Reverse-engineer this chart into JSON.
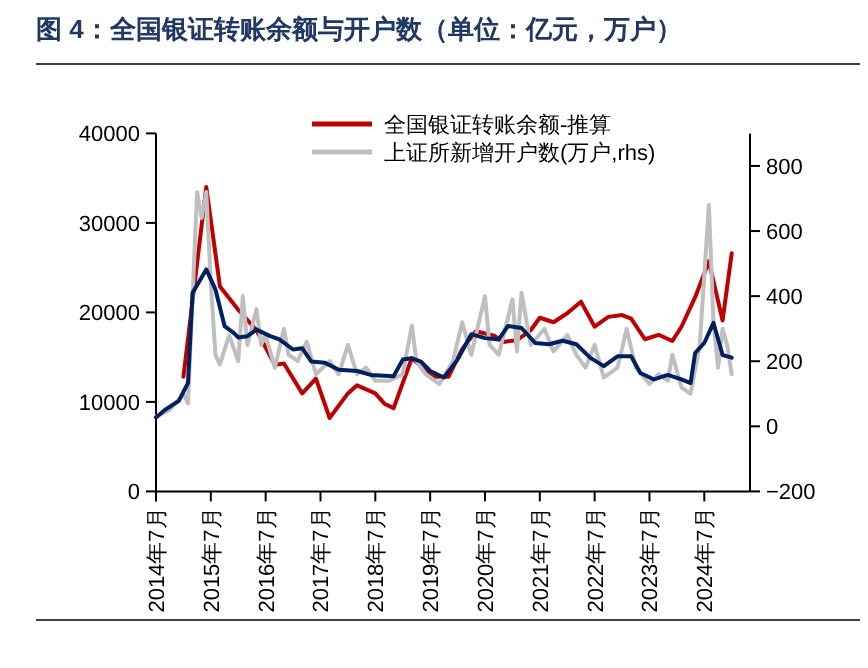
{
  "chart_data": {
    "type": "line",
    "title": "图 4：全国银证转账余额与开户数（单位：亿元，万户）",
    "xlim": [
      "2014-07",
      "2025-05"
    ],
    "xticks": [
      {
        "value": "2014-07",
        "label": "2014年7月"
      },
      {
        "value": "2015-07",
        "label": "2015年7月"
      },
      {
        "value": "2016-07",
        "label": "2016年7月"
      },
      {
        "value": "2017-07",
        "label": "2017年7月"
      },
      {
        "value": "2018-07",
        "label": "2018年7月"
      },
      {
        "value": "2019-07",
        "label": "2019年7月"
      },
      {
        "value": "2020-07",
        "label": "2020年7月"
      },
      {
        "value": "2021-07",
        "label": "2021年7月"
      },
      {
        "value": "2022-07",
        "label": "2022年7月"
      },
      {
        "value": "2023-07",
        "label": "2023年7月"
      },
      {
        "value": "2024-07",
        "label": "2024年7月"
      }
    ],
    "ylim": [
      0,
      40000
    ],
    "yticks": [
      0,
      10000,
      20000,
      30000,
      40000
    ],
    "y2lim": [
      -200,
      900
    ],
    "y2ticks": [
      -200,
      0,
      200,
      400,
      600,
      800
    ],
    "legend": "top",
    "grid": false,
    "line_style": "solid",
    "marker": "none",
    "series": [
      {
        "name": "全国银证转账余额-推算",
        "color": "#c00000",
        "x": [
          "2015-01",
          "2015-06",
          "2015-09",
          "2016-01",
          "2016-05",
          "2016-09",
          "2016-11",
          "2017-03",
          "2017-06",
          "2017-09",
          "2018-01",
          "2018-03",
          "2018-07",
          "2018-09",
          "2018-11",
          "2019-03",
          "2019-05",
          "2019-08",
          "2019-11",
          "2020-02",
          "2020-05",
          "2020-09",
          "2020-11",
          "2021-02",
          "2021-05",
          "2021-07",
          "2021-10",
          "2022-01",
          "2022-04",
          "2022-07",
          "2022-10",
          "2023-01",
          "2023-03",
          "2023-06",
          "2023-09",
          "2023-12",
          "2024-02",
          "2024-05",
          "2024-08",
          "2024-11",
          "2025-01"
        ],
        "values": [
          12800,
          34000,
          22900,
          20300,
          18000,
          14150,
          14300,
          10950,
          12600,
          8200,
          10950,
          11850,
          10950,
          9800,
          9300,
          14900,
          13950,
          12800,
          12800,
          15900,
          17900,
          17400,
          16700,
          16900,
          18000,
          19400,
          18900,
          19900,
          21200,
          18400,
          19500,
          19700,
          19300,
          17000,
          17500,
          16800,
          18400,
          21700,
          25700,
          19100,
          26600
        ]
      },
      {
        "name": "上证所新增开户数(万户,rhs)",
        "color": "#bfbfbf",
        "axis": "y2",
        "x": [
          "2014-07",
          "2014-10",
          "2015-01",
          "2015-02",
          "2015-04",
          "2015-05",
          "2015-06",
          "2015-07",
          "2015-08",
          "2015-09",
          "2015-11",
          "2015-12",
          "2016-01",
          "2016-02",
          "2016-03",
          "2016-05",
          "2016-06",
          "2016-07",
          "2016-09",
          "2016-11",
          "2016-12",
          "2017-02",
          "2017-04",
          "2017-06",
          "2017-09",
          "2017-11",
          "2018-01",
          "2018-03",
          "2018-05",
          "2018-07",
          "2018-10",
          "2019-01",
          "2019-03",
          "2019-04",
          "2019-06",
          "2019-09",
          "2019-12",
          "2020-02",
          "2020-04",
          "2020-07",
          "2020-08",
          "2020-10",
          "2021-01",
          "2021-02",
          "2021-03",
          "2021-05",
          "2021-08",
          "2021-10",
          "2022-01",
          "2022-03",
          "2022-05",
          "2022-07",
          "2022-09",
          "2022-12",
          "2023-02",
          "2023-04",
          "2023-07",
          "2023-09",
          "2023-11",
          "2023-12",
          "2024-02",
          "2024-04",
          "2024-06",
          "2024-08",
          "2024-09",
          "2024-10",
          "2024-11",
          "2024-12",
          "2025-01"
        ],
        "values": [
          30,
          50,
          100,
          70,
          720,
          640,
          720,
          440,
          220,
          190,
          280,
          240,
          200,
          400,
          250,
          360,
          250,
          280,
          180,
          300,
          220,
          200,
          260,
          160,
          200,
          160,
          250,
          160,
          180,
          140,
          140,
          160,
          310,
          200,
          160,
          130,
          200,
          320,
          220,
          400,
          250,
          220,
          390,
          230,
          410,
          250,
          300,
          230,
          280,
          220,
          180,
          250,
          150,
          180,
          300,
          180,
          130,
          160,
          140,
          220,
          120,
          100,
          250,
          680,
          320,
          180,
          300,
          250,
          160
        ]
      },
      {
        "color": "#002060",
        "axis": "y2",
        "x": [
          "2014-07",
          "2014-09",
          "2014-12",
          "2015-02",
          "2015-03",
          "2015-06",
          "2015-08",
          "2015-10",
          "2015-12",
          "2016-01",
          "2016-03",
          "2016-05",
          "2016-08",
          "2016-10",
          "2017-01",
          "2017-03",
          "2017-05",
          "2017-08",
          "2017-11",
          "2018-03",
          "2018-06",
          "2018-11",
          "2019-01",
          "2019-03",
          "2019-05",
          "2019-07",
          "2019-10",
          "2020-01",
          "2020-04",
          "2020-07",
          "2020-10",
          "2020-12",
          "2021-03",
          "2021-06",
          "2021-09",
          "2021-12",
          "2022-03",
          "2022-06",
          "2022-09",
          "2022-12",
          "2023-03",
          "2023-05",
          "2023-08",
          "2023-11",
          "2024-02",
          "2024-04",
          "2024-05",
          "2024-07",
          "2024-09",
          "2024-11",
          "2025-01"
        ],
        "values": [
          27,
          51,
          78,
          133,
          410,
          482,
          421,
          308,
          287,
          273,
          277,
          297,
          277,
          267,
          236,
          240,
          199,
          195,
          174,
          170,
          158,
          154,
          205,
          209,
          199,
          170,
          150,
          205,
          283,
          271,
          267,
          308,
          302,
          256,
          252,
          263,
          252,
          211,
          185,
          215,
          215,
          164,
          144,
          158,
          144,
          133,
          226,
          256,
          318,
          219,
          211
        ]
      }
    ]
  }
}
